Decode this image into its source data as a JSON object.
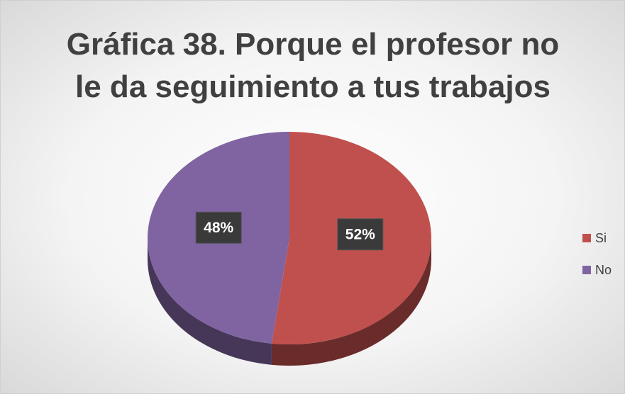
{
  "chart_data": {
    "type": "pie",
    "title": "Gráfica 38. Porque el profesor no le da seguimiento a tus trabajos",
    "categories": [
      "Si",
      "No"
    ],
    "values": [
      52,
      48
    ],
    "value_labels": [
      "52%",
      "48%"
    ],
    "colors": [
      "#c0504d",
      "#8064a2"
    ],
    "legend": "right"
  }
}
